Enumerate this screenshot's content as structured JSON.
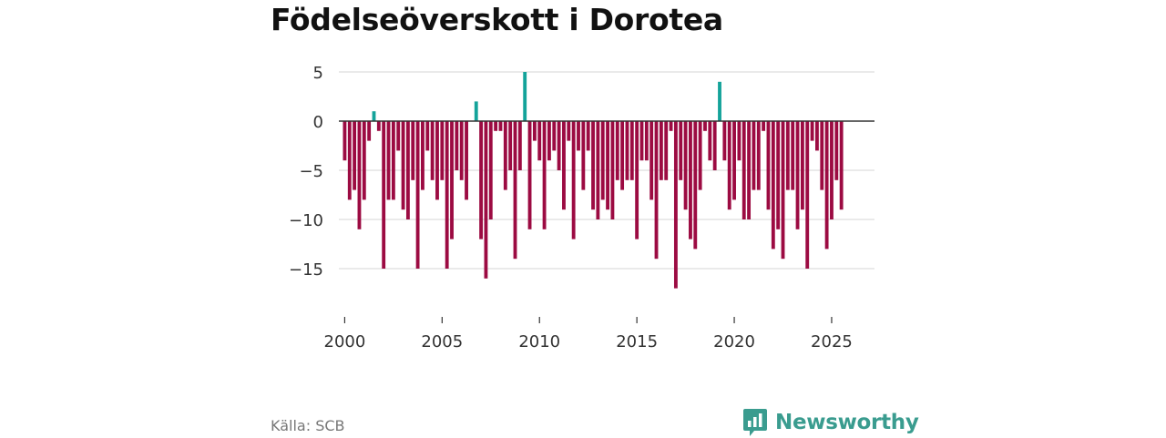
{
  "title": "Födelseöverskott i Dorotea",
  "source": "Källa: SCB",
  "brand": {
    "name": "Newsworthy",
    "icon": "newsworthy-logo-icon"
  },
  "colors": {
    "positive": "#14a39a",
    "negative": "#9c0b42",
    "grid": "#dddddd",
    "zero_line": "#333333"
  },
  "chart_data": {
    "type": "bar",
    "title": "Födelseöverskott i Dorotea",
    "x_start": 2000,
    "x_step": 0.25,
    "xlabel": "",
    "ylabel": "",
    "ylim": [
      -18,
      5
    ],
    "x_range": [
      1999.7,
      2027.2
    ],
    "xticks": [
      2000,
      2005,
      2010,
      2015,
      2020,
      2025
    ],
    "yticks": [
      5,
      0,
      -5,
      -10,
      -15
    ],
    "ytick_labels": [
      "5",
      "0",
      "−5",
      "−10",
      "−15"
    ],
    "grid": true,
    "legend": "none",
    "values": [
      -4,
      -8,
      -7,
      -11,
      -8,
      -2,
      1,
      -1,
      -15,
      -8,
      -8,
      -3,
      -9,
      -10,
      -6,
      -15,
      -7,
      -3,
      -6,
      -8,
      -6,
      -15,
      -12,
      -5,
      -6,
      -8,
      0,
      2,
      -12,
      -16,
      -10,
      -1,
      -1,
      -7,
      -5,
      -14,
      -5,
      5,
      -11,
      -2,
      -4,
      -11,
      -4,
      -3,
      -5,
      -9,
      -2,
      -12,
      -3,
      -7,
      -3,
      -9,
      -10,
      -8,
      -9,
      -10,
      -6,
      -7,
      -6,
      -6,
      -12,
      -4,
      -4,
      -8,
      -14,
      -6,
      -6,
      -1,
      -17,
      -6,
      -9,
      -12,
      -13,
      -7,
      -1,
      -4,
      -5,
      4,
      -4,
      -9,
      -8,
      -4,
      -10,
      -10,
      -7,
      -7,
      -1,
      -9,
      -13,
      -11,
      -14,
      -7,
      -7,
      -11,
      -9,
      -15,
      -2,
      -3,
      -7,
      -13,
      -10,
      -6,
      -9
    ]
  }
}
